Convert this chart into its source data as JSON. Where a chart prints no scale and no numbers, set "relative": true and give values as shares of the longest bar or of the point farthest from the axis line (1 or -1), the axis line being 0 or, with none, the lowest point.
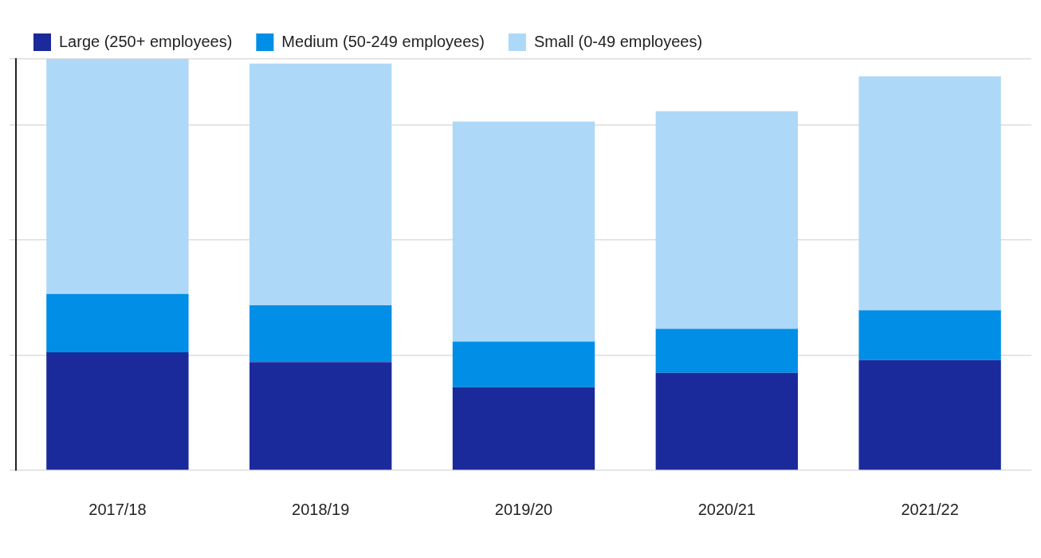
{
  "chart_data": {
    "type": "bar",
    "stacked": true,
    "relative": true,
    "grid": "y",
    "legend": "top left",
    "categories": [
      "2017/18",
      "2018/19",
      "2019/20",
      "2020/21",
      "2021/22"
    ],
    "series": [
      {
        "name": "Large (250+ employees)",
        "color": "#1b2a9b",
        "values": [
          0.287,
          0.263,
          0.202,
          0.237,
          0.268
        ]
      },
      {
        "name": "Medium (50-249 employees)",
        "color": "#008ee6",
        "values": [
          0.142,
          0.138,
          0.111,
          0.107,
          0.121
        ]
      },
      {
        "name": "Small (0-49 employees)",
        "color": "#add8f7",
        "values": [
          0.571,
          0.588,
          0.535,
          0.529,
          0.569
        ]
      }
    ]
  }
}
